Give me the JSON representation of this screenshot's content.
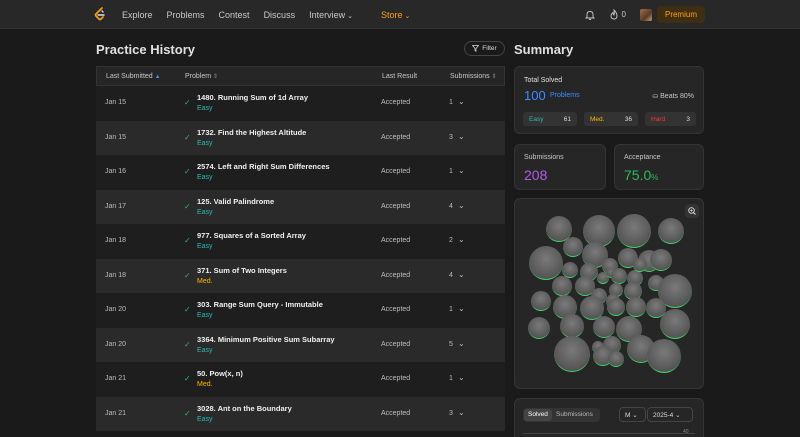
{
  "nav": {
    "links": [
      "Explore",
      "Problems",
      "Contest",
      "Discuss",
      "Interview",
      "Store"
    ],
    "streak": "0",
    "premium": "Premium"
  },
  "history": {
    "title": "Practice History",
    "filter": "Filter",
    "columns": [
      "Last Submitted",
      "Problem",
      "Last Result",
      "Submissions"
    ],
    "rows": [
      {
        "date": "Jan 15",
        "problem": "1480. Running Sum of 1d Array",
        "difficulty": "Easy",
        "result": "Accepted",
        "subs": "1"
      },
      {
        "date": "Jan 15",
        "problem": "1732. Find the Highest Altitude",
        "difficulty": "Easy",
        "result": "Accepted",
        "subs": "3"
      },
      {
        "date": "Jan 16",
        "problem": "2574. Left and Right Sum Differences",
        "difficulty": "Easy",
        "result": "Accepted",
        "subs": "1"
      },
      {
        "date": "Jan 17",
        "problem": "125. Valid Palindrome",
        "difficulty": "Easy",
        "result": "Accepted",
        "subs": "4"
      },
      {
        "date": "Jan 18",
        "problem": "977. Squares of a Sorted Array",
        "difficulty": "Easy",
        "result": "Accepted",
        "subs": "2"
      },
      {
        "date": "Jan 18",
        "problem": "371. Sum of Two Integers",
        "difficulty": "Med.",
        "result": "Accepted",
        "subs": "4"
      },
      {
        "date": "Jan 20",
        "problem": "303. Range Sum Query - Immutable",
        "difficulty": "Easy",
        "result": "Accepted",
        "subs": "1"
      },
      {
        "date": "Jan 20",
        "problem": "3364. Minimum Positive Sum Subarray",
        "difficulty": "Easy",
        "result": "Accepted",
        "subs": "5"
      },
      {
        "date": "Jan 21",
        "problem": "50. Pow(x, n)",
        "difficulty": "Med.",
        "result": "Accepted",
        "subs": "1"
      },
      {
        "date": "Jan 21",
        "problem": "3028. Ant on the Boundary",
        "difficulty": "Easy",
        "result": "Accepted",
        "subs": "3"
      }
    ]
  },
  "summary": {
    "title": "Summary",
    "total_label": "Total Solved",
    "total_value": "100",
    "total_unit": "Problems",
    "beats": "Beats 80%",
    "easy_label": "Easy",
    "easy_value": "61",
    "med_label": "Med.",
    "med_value": "36",
    "hard_label": "Hard",
    "hard_value": "3",
    "submissions_label": "Submissions",
    "submissions_value": "208",
    "acceptance_label": "Acceptance",
    "acceptance_value": "75.0",
    "acceptance_unit": "%",
    "tabs": [
      "Solved",
      "Submissions"
    ],
    "range_select": "M",
    "date_select": "2025-4",
    "chart_tick": "40"
  },
  "colors": {
    "accent": "#ffa116",
    "blue": "#3b8cff",
    "easy": "#2cbbaf",
    "medium": "#ffb800",
    "hard": "#f63737",
    "submissions": "#b55ce6",
    "acceptance": "#2cbb5d"
  }
}
